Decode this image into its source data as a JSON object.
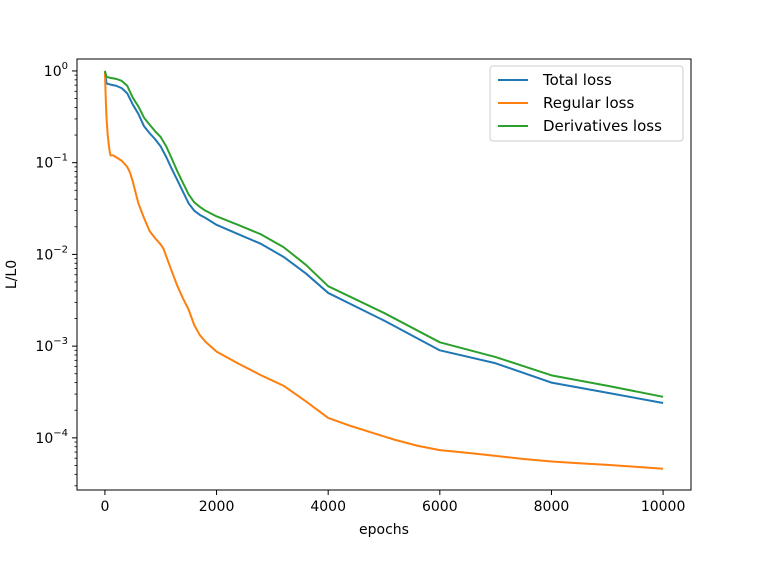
{
  "chart_data": {
    "type": "line",
    "title": "",
    "xlabel": "epochs",
    "ylabel": "L/L0",
    "xscale": "linear",
    "yscale": "log",
    "xlim": [
      -500,
      10500
    ],
    "ylim": [
      2.7e-05,
      1.35
    ],
    "xticks": [
      0,
      2000,
      4000,
      6000,
      8000,
      10000
    ],
    "xtick_labels": [
      "0",
      "2000",
      "4000",
      "6000",
      "8000",
      "10000"
    ],
    "yticks": [
      1,
      0.1,
      0.01,
      0.001,
      0.0001
    ],
    "ytick_labels": [
      {
        "base": "10",
        "exp": "0"
      },
      {
        "base": "10",
        "exp": "−1"
      },
      {
        "base": "10",
        "exp": "−2"
      },
      {
        "base": "10",
        "exp": "−3"
      },
      {
        "base": "10",
        "exp": "−4"
      }
    ],
    "grid": false,
    "legend_position": "upper-right",
    "series": [
      {
        "name": "Total loss",
        "color": "#1f77b4",
        "x": [
          0,
          30,
          100,
          200,
          300,
          400,
          500,
          600,
          700,
          800,
          900,
          1000,
          1100,
          1200,
          1300,
          1400,
          1500,
          1600,
          1700,
          1800,
          2000,
          2400,
          2800,
          3200,
          3600,
          4000,
          5000,
          6000,
          7000,
          8000,
          9000,
          10000
        ],
        "y": [
          1.0,
          0.73,
          0.71,
          0.69,
          0.65,
          0.57,
          0.43,
          0.34,
          0.25,
          0.21,
          0.18,
          0.15,
          0.115,
          0.085,
          0.064,
          0.048,
          0.036,
          0.03,
          0.027,
          0.025,
          0.021,
          0.0165,
          0.013,
          0.0094,
          0.0062,
          0.0038,
          0.0019,
          0.0009,
          0.00065,
          0.0004,
          0.00031,
          0.00024
        ]
      },
      {
        "name": "Regular loss",
        "color": "#ff7f0e",
        "x": [
          0,
          15,
          30,
          50,
          80,
          100,
          150,
          200,
          300,
          400,
          450,
          500,
          600,
          700,
          800,
          900,
          1000,
          1050,
          1100,
          1200,
          1300,
          1400,
          1500,
          1600,
          1700,
          1800,
          2000,
          2400,
          2800,
          3200,
          3600,
          4000,
          4400,
          4800,
          5200,
          5600,
          6000,
          6500,
          7000,
          7500,
          8000,
          8500,
          9000,
          9500,
          10000
        ],
        "y": [
          1.0,
          0.5,
          0.3,
          0.2,
          0.14,
          0.12,
          0.12,
          0.115,
          0.105,
          0.09,
          0.078,
          0.062,
          0.036,
          0.025,
          0.018,
          0.015,
          0.0128,
          0.0115,
          0.0095,
          0.0065,
          0.0045,
          0.0033,
          0.0025,
          0.0017,
          0.00132,
          0.00112,
          0.00087,
          0.00064,
          0.00048,
          0.00037,
          0.00025,
          0.000165,
          0.000135,
          0.000113,
          9.5e-05,
          8.2e-05,
          7.35e-05,
          6.85e-05,
          6.35e-05,
          5.88e-05,
          5.52e-05,
          5.28e-05,
          5.08e-05,
          4.84e-05,
          4.6e-05
        ]
      },
      {
        "name": "Derivatives loss",
        "color": "#2ca02c",
        "x": [
          0,
          30,
          100,
          200,
          300,
          400,
          500,
          600,
          700,
          800,
          900,
          1000,
          1100,
          1200,
          1300,
          1400,
          1500,
          1600,
          1700,
          1800,
          2000,
          2400,
          2800,
          3200,
          3600,
          4000,
          5000,
          6000,
          7000,
          8000,
          9000,
          10000
        ],
        "y": [
          1.0,
          0.86,
          0.84,
          0.82,
          0.78,
          0.69,
          0.51,
          0.41,
          0.31,
          0.26,
          0.22,
          0.19,
          0.15,
          0.11,
          0.08,
          0.06,
          0.045,
          0.037,
          0.033,
          0.03,
          0.026,
          0.0208,
          0.0165,
          0.012,
          0.0077,
          0.0045,
          0.0023,
          0.0011,
          0.00076,
          0.00048,
          0.00037,
          0.00028
        ]
      }
    ]
  }
}
